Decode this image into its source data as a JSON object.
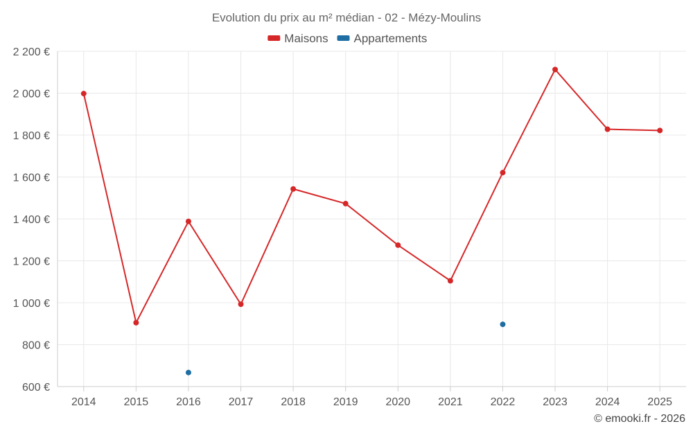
{
  "chart_data": {
    "type": "line",
    "title": "Evolution du prix au m² médian - 02 - Mézy-Moulins",
    "categories": [
      "2014",
      "2015",
      "2016",
      "2017",
      "2018",
      "2019",
      "2020",
      "2021",
      "2022",
      "2023",
      "2024",
      "2025"
    ],
    "series": [
      {
        "name": "Maisons",
        "color": "#d62728",
        "values": [
          1998,
          905,
          1388,
          993,
          1543,
          1473,
          1275,
          1105,
          1621,
          2113,
          1828,
          1822
        ]
      },
      {
        "name": "Appartements",
        "color": "#1f6ea3",
        "values": [
          null,
          null,
          667,
          null,
          null,
          null,
          null,
          null,
          897,
          null,
          null,
          null
        ]
      }
    ],
    "ylim": [
      600,
      2200
    ],
    "yticks": [
      600,
      800,
      1000,
      1200,
      1400,
      1600,
      1800,
      2000,
      2200
    ],
    "ytick_labels": [
      "600 €",
      "800 €",
      "1 000 €",
      "1 200 €",
      "1 400 €",
      "1 600 €",
      "1 800 €",
      "2 000 €",
      "2 200 €"
    ],
    "xlabel": "",
    "ylabel": "",
    "grid": true,
    "legend": "top-center"
  },
  "credit": "© emooki.fr - 2026"
}
